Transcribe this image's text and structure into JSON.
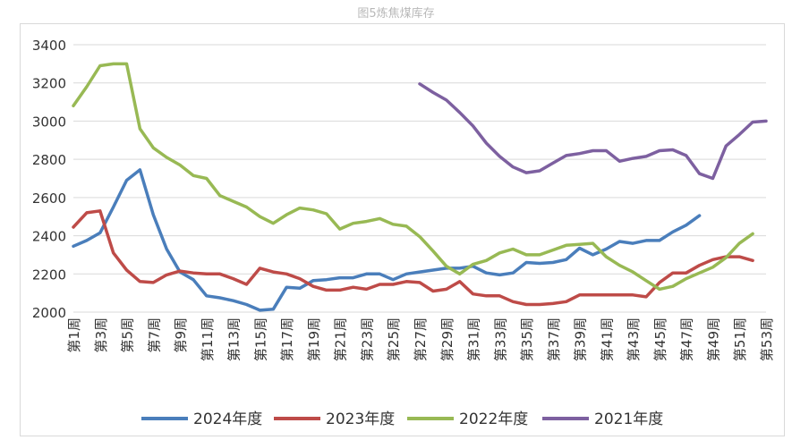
{
  "title": "图5炼焦煤库存",
  "chart_data": {
    "type": "line",
    "title": "图5炼焦煤库存",
    "categories": [
      "第1周",
      "第2周",
      "第3周",
      "第4周",
      "第5周",
      "第6周",
      "第7周",
      "第8周",
      "第9周",
      "第10周",
      "第11周",
      "第12周",
      "第13周",
      "第14周",
      "第15周",
      "第16周",
      "第17周",
      "第18周",
      "第19周",
      "第20周",
      "第21周",
      "第22周",
      "第23周",
      "第24周",
      "第25周",
      "第26周",
      "第27周",
      "第28周",
      "第29周",
      "第30周",
      "第31周",
      "第32周",
      "第33周",
      "第34周",
      "第35周",
      "第36周",
      "第37周",
      "第38周",
      "第39周",
      "第40周",
      "第41周",
      "第42周",
      "第43周",
      "第44周",
      "第45周",
      "第46周",
      "第47周",
      "第48周",
      "第49周",
      "第50周",
      "第51周",
      "第52周",
      "第53周"
    ],
    "tick_labels": [
      "第1周",
      "第3周",
      "第5周",
      "第7周",
      "第9周",
      "第11周",
      "第13周",
      "第15周",
      "第17周",
      "第19周",
      "第21周",
      "第23周",
      "第25周",
      "第27周",
      "第29周",
      "第31周",
      "第33周",
      "第35周",
      "第37周",
      "第39周",
      "第41周",
      "第43周",
      "第45周",
      "第47周",
      "第49周",
      "第51周",
      "第53周"
    ],
    "y_ticks": [
      "2000",
      "2200",
      "2400",
      "2600",
      "2800",
      "3000",
      "3200",
      "3400"
    ],
    "ylim": [
      2000,
      3400
    ],
    "grid": true,
    "legend_position": "bottom",
    "series": [
      {
        "name": "2024年度",
        "color": "#4a7ebb",
        "values": [
          2345,
          2375,
          2415,
          2550,
          2690,
          2745,
          2510,
          2330,
          2210,
          2170,
          2085,
          2075,
          2060,
          2040,
          2010,
          2015,
          2130,
          2125,
          2165,
          2170,
          2180,
          2180,
          2200,
          2200,
          2170,
          2200,
          2210,
          2220,
          2230,
          2230,
          2240,
          2205,
          2195,
          2205,
          2260,
          2255,
          2260,
          2275,
          2335,
          2300,
          2330,
          2370,
          2360,
          2375,
          2375,
          2420,
          2455,
          2505,
          null,
          null,
          null,
          null,
          null
        ]
      },
      {
        "name": "2023年度",
        "color": "#be4b48",
        "values": [
          2445,
          2520,
          2530,
          2310,
          2220,
          2160,
          2155,
          2195,
          2215,
          2205,
          2200,
          2200,
          2175,
          2145,
          2230,
          2210,
          2200,
          2175,
          2135,
          2115,
          2115,
          2130,
          2120,
          2145,
          2145,
          2160,
          2155,
          2110,
          2120,
          2160,
          2095,
          2085,
          2085,
          2055,
          2040,
          2040,
          2045,
          2055,
          2090,
          2090,
          2090,
          2090,
          2090,
          2080,
          2155,
          2205,
          2205,
          2245,
          2275,
          2290,
          2290,
          2270,
          null
        ]
      },
      {
        "name": "2022年度",
        "color": "#98b954",
        "values": [
          3080,
          3180,
          3290,
          3300,
          3300,
          2960,
          2860,
          2810,
          2770,
          2715,
          2700,
          2610,
          2580,
          2550,
          2500,
          2465,
          2510,
          2545,
          2535,
          2515,
          2435,
          2465,
          2475,
          2490,
          2460,
          2450,
          2395,
          2320,
          2240,
          2200,
          2250,
          2270,
          2310,
          2330,
          2300,
          2300,
          2325,
          2350,
          2355,
          2360,
          2290,
          2245,
          2210,
          2165,
          2120,
          2135,
          2175,
          2205,
          2235,
          2285,
          2360,
          2410,
          null
        ]
      },
      {
        "name": "2021年度",
        "color": "#7d60a0",
        "values": [
          null,
          null,
          null,
          null,
          null,
          null,
          null,
          null,
          null,
          null,
          null,
          null,
          null,
          null,
          null,
          null,
          null,
          null,
          null,
          null,
          null,
          null,
          null,
          null,
          null,
          null,
          3195,
          3150,
          3110,
          3045,
          2975,
          2885,
          2815,
          2760,
          2730,
          2740,
          2780,
          2820,
          2830,
          2845,
          2845,
          2790,
          2805,
          2815,
          2845,
          2850,
          2820,
          2725,
          2700,
          2870,
          2930,
          2995,
          3000
        ]
      }
    ]
  }
}
